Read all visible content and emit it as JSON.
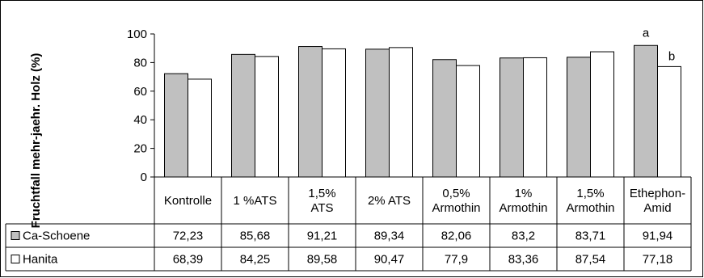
{
  "chart_data": {
    "type": "bar",
    "ylabel": "Fruchtfall mehr-jaehr. Holz (%)",
    "ylim": [
      0,
      100
    ],
    "yticks": [
      0,
      20,
      40,
      60,
      80,
      100
    ],
    "grid": false,
    "categories": [
      [
        "Kontrolle"
      ],
      [
        "1 %ATS"
      ],
      [
        "1,5%",
        "ATS"
      ],
      [
        "2% ATS"
      ],
      [
        "0,5%",
        "Armothin"
      ],
      [
        "1%",
        "Armothin"
      ],
      [
        "1,5%",
        "Armothin"
      ],
      [
        "Ethephon-",
        "Amid"
      ]
    ],
    "series": [
      {
        "name": "Ca-Schoene",
        "color": "#c0c0c0",
        "values": [
          72.23,
          85.68,
          91.21,
          89.34,
          82.06,
          83.2,
          83.71,
          91.94
        ],
        "labels": [
          "72,23",
          "85,68",
          "91,21",
          "89,34",
          "82,06",
          "83,2",
          "83,71",
          "91,94"
        ]
      },
      {
        "name": "Hanita",
        "color": "#ffffff",
        "values": [
          68.39,
          84.25,
          89.58,
          90.47,
          77.9,
          83.36,
          87.54,
          77.18
        ],
        "labels": [
          "68,39",
          "84,25",
          "89,58",
          "90,47",
          "77,9",
          "83,36",
          "87,54",
          "77,18"
        ]
      }
    ],
    "annotations": [
      {
        "category_index": 7,
        "series_index": 0,
        "text": "a"
      },
      {
        "category_index": 7,
        "series_index": 1,
        "text": "b"
      }
    ]
  }
}
